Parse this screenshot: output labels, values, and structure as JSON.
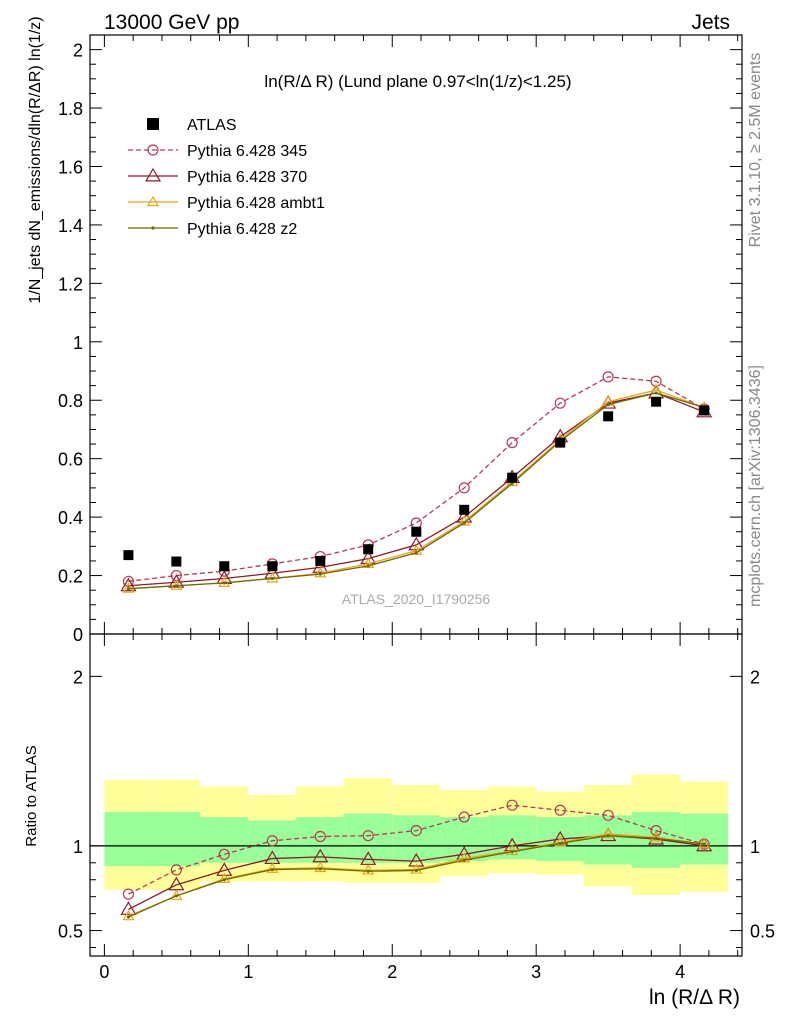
{
  "header": {
    "left": "13000 GeV pp",
    "right": "Jets"
  },
  "side_text": {
    "rivet": "Rivet 3.1.10, ≥ 2.5M events",
    "mcplots": "mcplots.cern.ch [arXiv:1306.3436]"
  },
  "watermark": "ATLAS_2020_I1790256",
  "plot_title": "ln(R/Δ R) (Lund plane 0.97<ln(1/z)<1.25)",
  "ylabel_main": "1/N_jets dN_emissions/dln(R/ΔR) ln(1/z)",
  "ylabel_ratio": "Ratio to ATLAS",
  "xlabel": "ln (R/Δ R)",
  "chart_data": {
    "type": "line",
    "x": [
      0.167,
      0.5,
      0.833,
      1.167,
      1.5,
      1.833,
      2.167,
      2.5,
      2.833,
      3.167,
      3.5,
      3.833,
      4.167
    ],
    "xlim": [
      -0.1,
      4.43
    ],
    "main": {
      "ylim": [
        0,
        2.05
      ],
      "yticks": [
        0.2,
        0.4,
        0.6,
        0.8,
        1,
        1.2,
        1.4,
        1.6,
        1.8,
        2
      ],
      "ytick_labels": [
        "0.2",
        "0.4",
        "0.6",
        "0.8",
        "1",
        "1.2",
        "1.4",
        "1.6",
        "1.8",
        "2"
      ],
      "data": {
        "name": "ATLAS",
        "values": [
          0.27,
          0.248,
          0.232,
          0.232,
          0.25,
          0.29,
          0.35,
          0.425,
          0.535,
          0.655,
          0.745,
          0.795,
          0.765
        ]
      },
      "series": [
        {
          "name": "Pythia 6.428 345",
          "color": "#b53a55",
          "marker": "circle",
          "dashed": true,
          "values": [
            0.18,
            0.2,
            0.215,
            0.24,
            0.265,
            0.305,
            0.38,
            0.5,
            0.655,
            0.79,
            0.88,
            0.865,
            0.77
          ]
        },
        {
          "name": "Pythia 6.428 370",
          "color": "#8c1a2a",
          "marker": "triangle",
          "dashed": false,
          "values": [
            0.165,
            0.177,
            0.19,
            0.208,
            0.228,
            0.258,
            0.305,
            0.4,
            0.535,
            0.675,
            0.79,
            0.825,
            0.76
          ]
        },
        {
          "name": "Pythia 6.428 ambt1",
          "color": "#e8a317",
          "marker": "triangle-small",
          "dashed": false,
          "values": [
            0.155,
            0.165,
            0.175,
            0.19,
            0.208,
            0.24,
            0.285,
            0.385,
            0.52,
            0.665,
            0.795,
            0.835,
            0.775
          ]
        },
        {
          "name": "Pythia 6.428 z2",
          "color": "#6b6b00",
          "marker": "dot",
          "dashed": false,
          "values": [
            0.155,
            0.165,
            0.175,
            0.19,
            0.205,
            0.233,
            0.278,
            0.38,
            0.515,
            0.66,
            0.785,
            0.825,
            0.775
          ]
        }
      ]
    },
    "ratio": {
      "ylim": [
        0.35,
        2.25
      ],
      "yticks": [
        0.5,
        1,
        2
      ],
      "ytick_labels": [
        "0.5",
        "1",
        "2"
      ],
      "band_yellow": [
        [
          0.74,
          1.39
        ],
        [
          0.74,
          1.39
        ],
        [
          0.79,
          1.35
        ],
        [
          0.79,
          1.3
        ],
        [
          0.79,
          1.35
        ],
        [
          0.78,
          1.4
        ],
        [
          0.78,
          1.36
        ],
        [
          0.82,
          1.33
        ],
        [
          0.84,
          1.35
        ],
        [
          0.83,
          1.32
        ],
        [
          0.76,
          1.36
        ],
        [
          0.71,
          1.42
        ],
        [
          0.73,
          1.38
        ]
      ],
      "band_green": [
        [
          0.88,
          1.2
        ],
        [
          0.88,
          1.2
        ],
        [
          0.9,
          1.17
        ],
        [
          0.9,
          1.15
        ],
        [
          0.9,
          1.17
        ],
        [
          0.9,
          1.19
        ],
        [
          0.9,
          1.18
        ],
        [
          0.91,
          1.17
        ],
        [
          0.92,
          1.18
        ],
        [
          0.91,
          1.17
        ],
        [
          0.89,
          1.18
        ],
        [
          0.87,
          1.2
        ],
        [
          0.89,
          1.19
        ]
      ],
      "series": [
        {
          "name": "Pythia 6.428 345",
          "values": [
            0.715,
            0.858,
            0.95,
            1.03,
            1.055,
            1.06,
            1.09,
            1.17,
            1.24,
            1.21,
            1.18,
            1.09,
            1.01
          ]
        },
        {
          "name": "Pythia 6.428 370",
          "values": [
            0.625,
            0.77,
            0.855,
            0.925,
            0.935,
            0.92,
            0.91,
            0.95,
            1.0,
            1.04,
            1.06,
            1.04,
            1.0
          ]
        },
        {
          "name": "Pythia 6.428 ambt1",
          "values": [
            0.585,
            0.705,
            0.805,
            0.865,
            0.87,
            0.855,
            0.86,
            0.925,
            0.97,
            1.02,
            1.07,
            1.05,
            1.01
          ]
        },
        {
          "name": "Pythia 6.428 z2",
          "values": [
            0.58,
            0.705,
            0.8,
            0.86,
            0.865,
            0.85,
            0.855,
            0.915,
            0.965,
            1.015,
            1.06,
            1.045,
            1.01
          ]
        }
      ]
    },
    "xticks": [
      0,
      1,
      2,
      3,
      4
    ],
    "xtick_labels": [
      "0",
      "1",
      "2",
      "3",
      "4"
    ],
    "legend_position": "top-left"
  }
}
